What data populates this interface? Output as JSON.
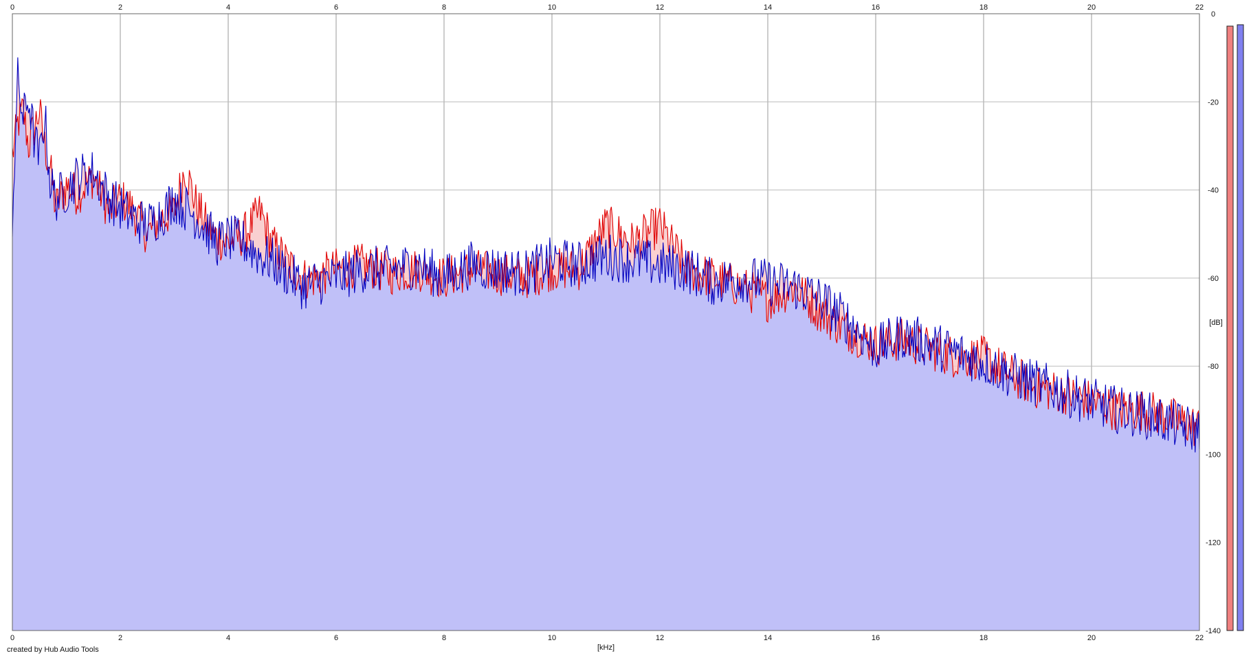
{
  "credit": "created by Hub Audio Tools",
  "chart_data": {
    "type": "area",
    "xlabel": "[kHz]",
    "ylabel": "[dB]",
    "xlim": [
      0,
      22
    ],
    "ylim": [
      -140,
      0
    ],
    "x_ticks": [
      0,
      2,
      4,
      6,
      8,
      10,
      12,
      14,
      16,
      18,
      20,
      22
    ],
    "y_ticks": [
      0,
      -20,
      -40,
      -60,
      -80,
      -100,
      -120,
      -140
    ],
    "grid": true,
    "colors": {
      "fill": "#c0c0f8",
      "red_line": "#e00000",
      "blue_line": "#0000c0",
      "red_fill": "#f8c8c8",
      "meter_red": "#f08080",
      "meter_blue": "#8080f0"
    },
    "series": [
      {
        "color": "#e00000",
        "x": [
          0,
          0.1,
          0.2,
          0.3,
          0.4,
          0.5,
          0.6,
          0.7,
          0.8,
          1,
          1.2,
          1.5,
          1.8,
          2,
          2.2,
          2.5,
          2.8,
          3,
          3.2,
          3.4,
          3.6,
          3.8,
          4,
          4.3,
          4.6,
          4.8,
          5,
          5.2,
          5.4,
          5.6,
          6,
          6.5,
          7,
          7.5,
          8,
          8.5,
          9,
          9.5,
          10,
          10.5,
          11,
          11.5,
          12,
          12.5,
          13,
          13.5,
          14,
          14.5,
          15,
          15.5,
          16,
          16.5,
          17,
          17.5,
          18,
          18.5,
          19,
          19.5,
          20,
          20.5,
          21,
          21.5,
          22
        ],
        "values": [
          -32,
          -25,
          -22,
          -30,
          -26,
          -22,
          -30,
          -35,
          -44,
          -39,
          -41,
          -37,
          -45,
          -42,
          -44,
          -50,
          -46,
          -45,
          -35,
          -43,
          -48,
          -51,
          -52,
          -50,
          -45,
          -52,
          -55,
          -58,
          -60,
          -60,
          -58,
          -57,
          -59,
          -58,
          -60,
          -58,
          -59,
          -60,
          -58,
          -58,
          -48,
          -52,
          -48,
          -58,
          -60,
          -62,
          -65,
          -62,
          -68,
          -72,
          -75,
          -74,
          -76,
          -78,
          -78,
          -82,
          -85,
          -86,
          -88,
          -90,
          -90,
          -92,
          -94
        ]
      },
      {
        "color": "#0000c0",
        "x": [
          0,
          0.1,
          0.2,
          0.3,
          0.4,
          0.5,
          0.6,
          0.7,
          0.8,
          1,
          1.2,
          1.5,
          1.8,
          2,
          2.2,
          2.5,
          2.8,
          3,
          3.2,
          3.4,
          3.6,
          3.8,
          4,
          4.3,
          4.6,
          4.8,
          5,
          5.2,
          5.4,
          5.6,
          6,
          6.5,
          7,
          7.5,
          8,
          8.5,
          9,
          9.5,
          10,
          10.5,
          11,
          11.5,
          12,
          12.5,
          13,
          13.5,
          14,
          14.5,
          15,
          15.5,
          16,
          16.5,
          17,
          17.5,
          18,
          18.5,
          19,
          19.5,
          20,
          20.5,
          21,
          21.5,
          22
        ],
        "values": [
          -46,
          -15,
          -24,
          -19,
          -28,
          -33,
          -23,
          -38,
          -42,
          -40,
          -37,
          -36,
          -42,
          -44,
          -46,
          -48,
          -45,
          -42,
          -44,
          -46,
          -49,
          -52,
          -51,
          -52,
          -55,
          -56,
          -58,
          -60,
          -62,
          -61,
          -60,
          -58,
          -58,
          -57,
          -60,
          -57,
          -58,
          -59,
          -56,
          -57,
          -55,
          -56,
          -57,
          -58,
          -61,
          -60,
          -61,
          -62,
          -65,
          -70,
          -76,
          -73,
          -75,
          -77,
          -79,
          -82,
          -84,
          -86,
          -88,
          -90,
          -91,
          -93,
          -95
        ]
      }
    ]
  }
}
